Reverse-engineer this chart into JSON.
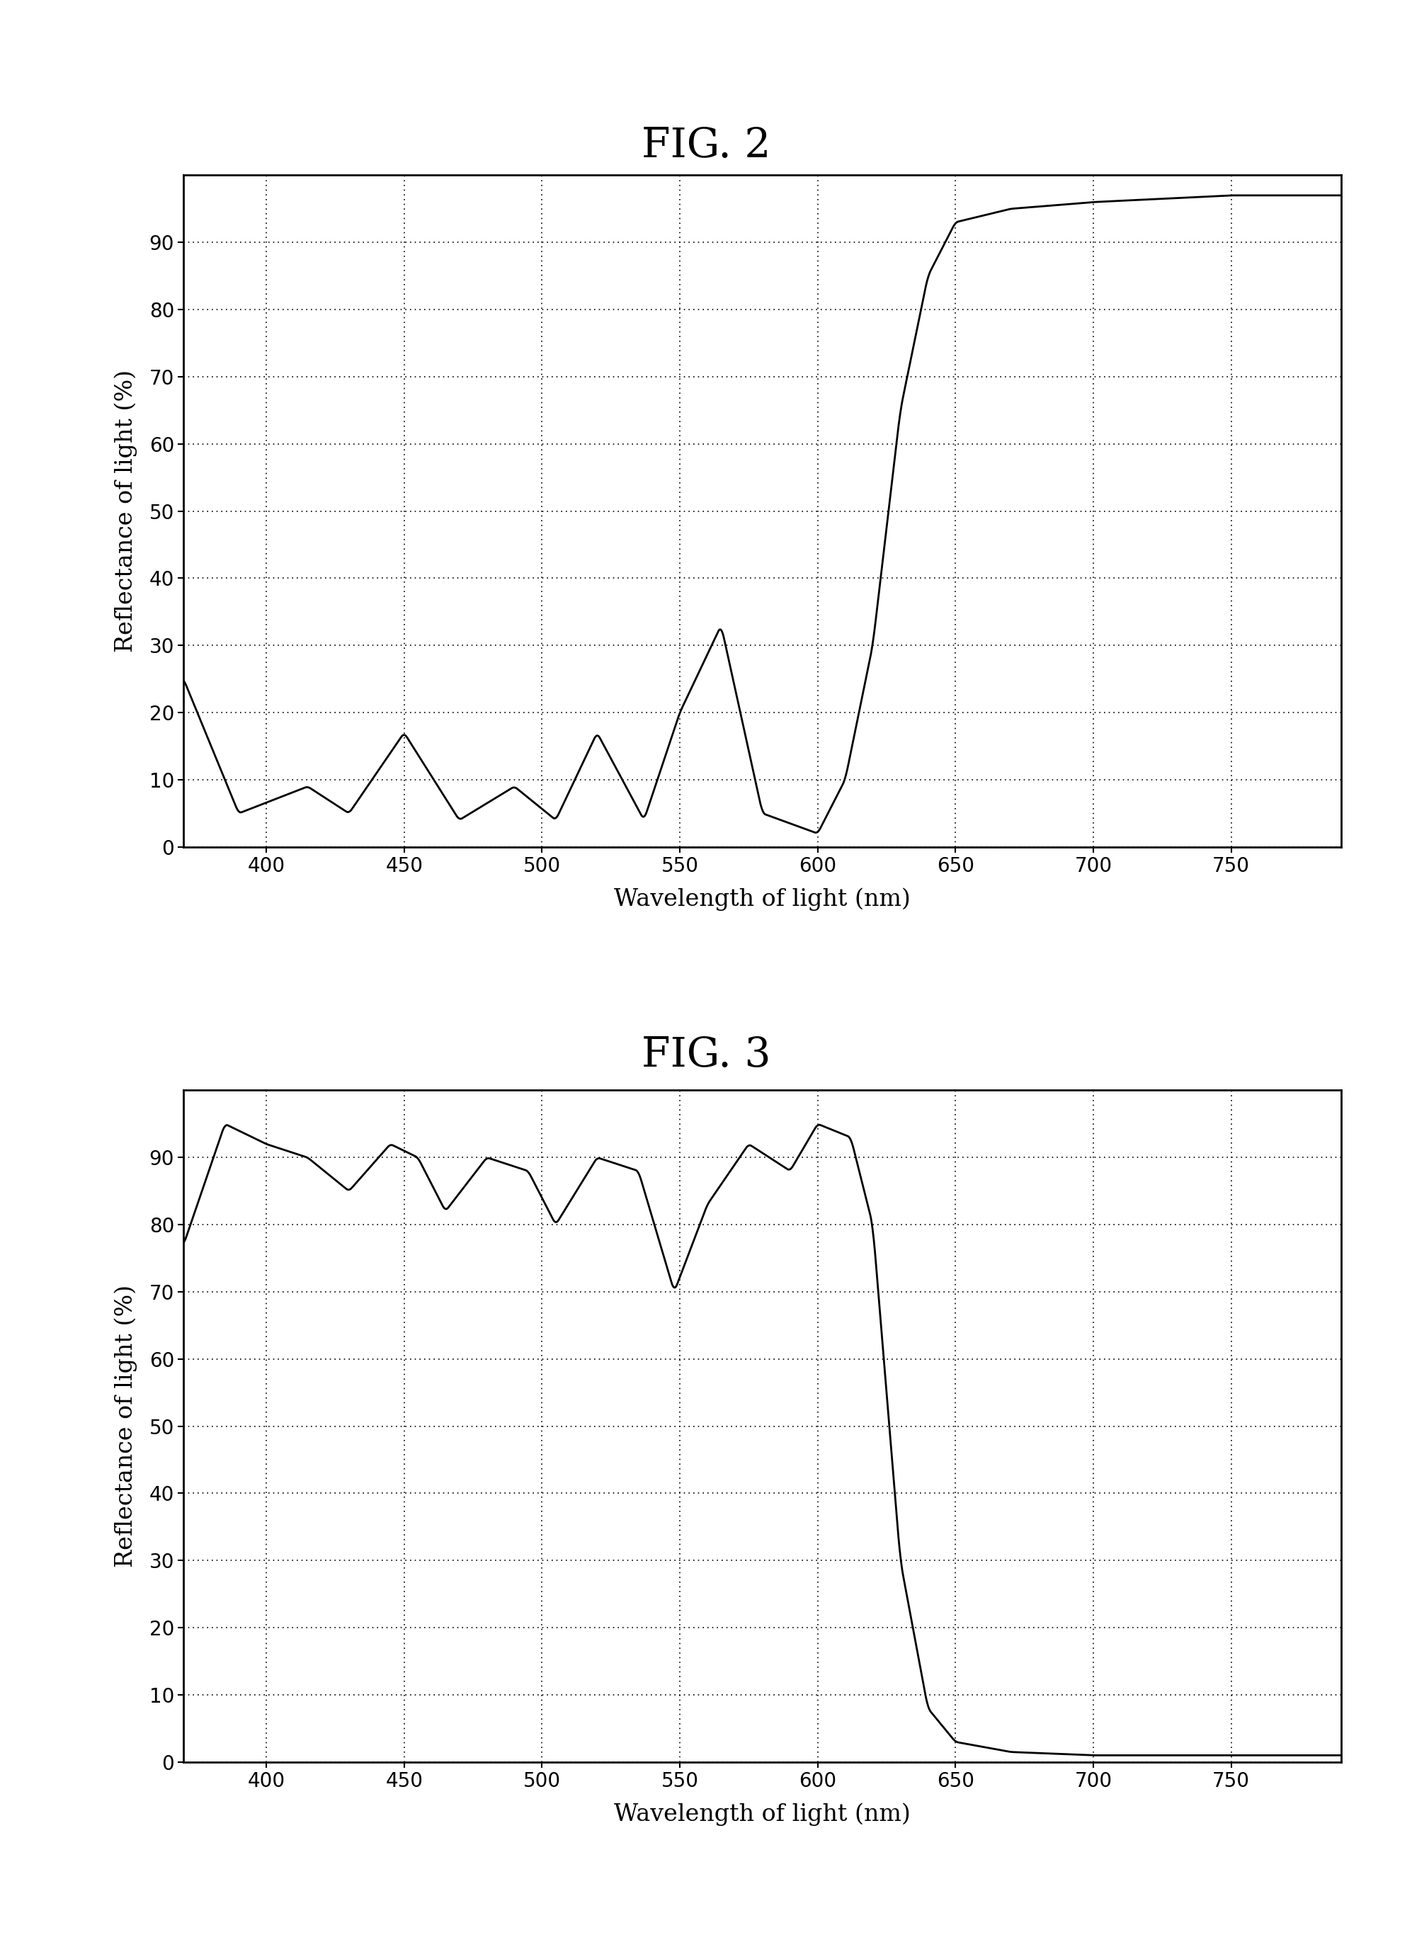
{
  "fig2_title": "FIG. 2",
  "fig3_title": "FIG. 3",
  "ylabel": "Reflectance of light (%)",
  "xlabel": "Wavelength of light (nm)",
  "xlim": [
    370,
    790
  ],
  "ylim": [
    0,
    100
  ],
  "xticks": [
    400,
    450,
    500,
    550,
    600,
    650,
    700,
    750
  ],
  "yticks": [
    0,
    10,
    20,
    30,
    40,
    50,
    60,
    70,
    80,
    90
  ],
  "background_color": "#ffffff",
  "line_color": "#000000",
  "fig2_keypoints": [
    [
      370,
      25
    ],
    [
      390,
      5
    ],
    [
      415,
      9
    ],
    [
      430,
      5
    ],
    [
      450,
      17
    ],
    [
      470,
      4
    ],
    [
      490,
      9
    ],
    [
      505,
      4
    ],
    [
      520,
      17
    ],
    [
      537,
      4
    ],
    [
      550,
      20
    ],
    [
      565,
      33
    ],
    [
      580,
      5
    ],
    [
      600,
      2
    ],
    [
      610,
      10
    ],
    [
      620,
      30
    ],
    [
      630,
      65
    ],
    [
      640,
      85
    ],
    [
      650,
      93
    ],
    [
      670,
      95
    ],
    [
      700,
      96
    ],
    [
      750,
      97
    ],
    [
      790,
      97
    ]
  ],
  "fig3_keypoints": [
    [
      370,
      77
    ],
    [
      385,
      95
    ],
    [
      400,
      92
    ],
    [
      415,
      90
    ],
    [
      430,
      85
    ],
    [
      445,
      92
    ],
    [
      455,
      90
    ],
    [
      465,
      82
    ],
    [
      480,
      90
    ],
    [
      495,
      88
    ],
    [
      505,
      80
    ],
    [
      520,
      90
    ],
    [
      535,
      88
    ],
    [
      548,
      70
    ],
    [
      560,
      83
    ],
    [
      575,
      92
    ],
    [
      590,
      88
    ],
    [
      600,
      95
    ],
    [
      612,
      93
    ],
    [
      620,
      80
    ],
    [
      630,
      30
    ],
    [
      640,
      8
    ],
    [
      650,
      3
    ],
    [
      670,
      1.5
    ],
    [
      700,
      1
    ],
    [
      750,
      1
    ],
    [
      790,
      1
    ]
  ]
}
